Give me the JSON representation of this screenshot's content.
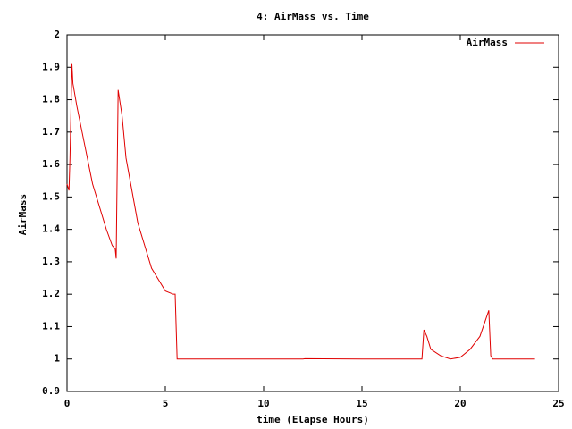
{
  "chart_data": {
    "type": "line",
    "title": "4: AirMass vs. Time",
    "x_label": "time (Elapse Hours)",
    "y_label": "AirMass",
    "x": [
      0,
      0.1,
      0.15,
      0.25,
      0.3,
      0.5,
      0.7,
      1.0,
      1.3,
      1.7,
      2.0,
      2.3,
      2.45,
      2.5,
      2.6,
      2.8,
      3.0,
      3.3,
      3.6,
      4.0,
      4.3,
      4.7,
      5.0,
      5.4,
      5.5,
      5.6,
      8,
      11,
      12,
      12.1,
      15,
      18,
      18.05,
      18.15,
      18.3,
      18.5,
      19,
      19.5,
      20,
      20.5,
      21,
      21.45,
      21.55,
      21.65,
      23,
      23.8
    ],
    "series": [
      {
        "name": "AirMass",
        "color": "#e00000",
        "values": [
          1.54,
          1.52,
          1.62,
          1.91,
          1.85,
          1.78,
          1.72,
          1.63,
          1.54,
          1.46,
          1.4,
          1.35,
          1.34,
          1.31,
          1.83,
          1.75,
          1.62,
          1.52,
          1.42,
          1.34,
          1.28,
          1.24,
          1.21,
          1.2,
          1.2,
          1.0,
          1.0,
          1.0,
          1.0,
          1.001,
          1.0,
          1.0,
          1.0,
          1.09,
          1.07,
          1.03,
          1.01,
          1.0,
          1.005,
          1.03,
          1.07,
          1.15,
          1.01,
          1.0,
          1.0,
          1.0
        ]
      }
    ],
    "xlim": [
      0,
      25
    ],
    "xticks": [
      0,
      5,
      10,
      15,
      20,
      25
    ],
    "ylim": [
      0.9,
      2
    ],
    "yticks": [
      0.9,
      1,
      1.1,
      1.2,
      1.3,
      1.4,
      1.5,
      1.6,
      1.7,
      1.8,
      1.9,
      2
    ],
    "legend": "upper right"
  }
}
